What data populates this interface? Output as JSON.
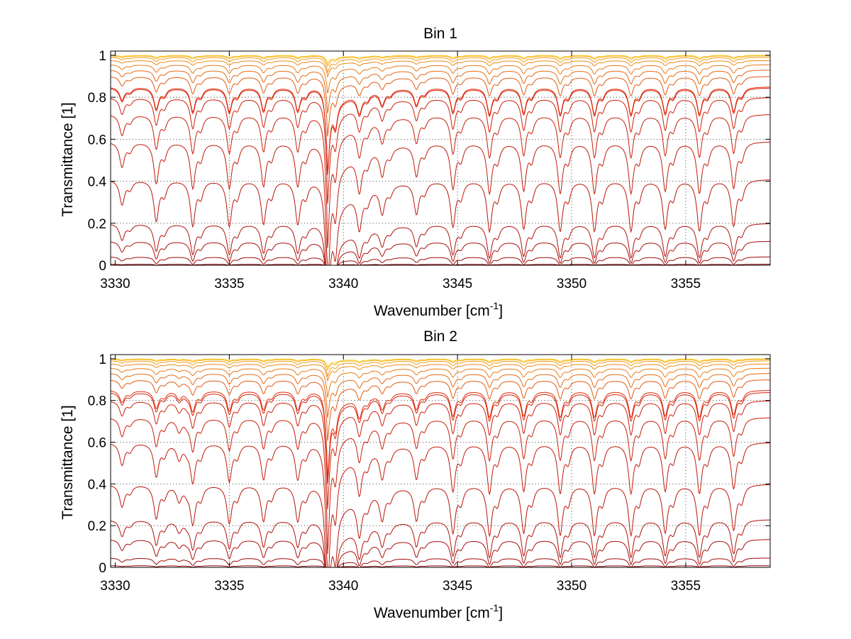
{
  "chart_data": [
    {
      "type": "line",
      "title": "Bin 1",
      "xlabel": "Wavenumber [cm",
      "xlabel_sup": "-1",
      "xlabel_end": "]",
      "ylabel": "Transmittance [1]",
      "xlim": [
        3329.8,
        3358.7
      ],
      "ylim": [
        0,
        1.02
      ],
      "xticks": [
        "3330",
        "3335",
        "3340",
        "3345",
        "3350",
        "3355"
      ],
      "yticks": [
        "0",
        "0.2",
        "0.4",
        "0.6",
        "0.8",
        "1"
      ],
      "grid": true,
      "legend": "none",
      "line_centers": [
        3330.3,
        3331.8,
        3333.4,
        3335.0,
        3336.5,
        3338.0,
        3339.3,
        3340.7,
        3341.7,
        3343.2,
        3344.8,
        3346.4,
        3347.9,
        3349.5,
        3351.0,
        3352.6,
        3354.1,
        3355.6,
        3357.1
      ],
      "line_strengths": [
        0.55,
        0.9,
        1.0,
        1.0,
        0.95,
        0.95,
        2.6,
        0.8,
        0.6,
        0.7,
        1.0,
        1.1,
        1.05,
        1.1,
        1.1,
        1.1,
        1.05,
        1.1,
        1.0
      ],
      "sharp_line": 3339.3,
      "series": [
        {
          "color": "#8b0000",
          "baseline": 0.0
        },
        {
          "color": "#950606",
          "baseline": 0.005
        },
        {
          "color": "#a00a0a",
          "baseline": 0.04
        },
        {
          "color": "#a80e0a",
          "baseline": 0.115
        },
        {
          "color": "#b0120a",
          "baseline": 0.2
        },
        {
          "color": "#b8160a",
          "baseline": 0.41
        },
        {
          "color": "#c01a0a",
          "baseline": 0.59
        },
        {
          "color": "#c81e0a",
          "baseline": 0.72
        },
        {
          "color": "#cc200a",
          "baseline": 0.8
        },
        {
          "color": "#d4240a",
          "baseline": 0.845
        },
        {
          "color": "#e02a0c",
          "baseline": 0.85
        },
        {
          "color": "#e05a10",
          "baseline": 0.9
        },
        {
          "color": "#e46a14",
          "baseline": 0.93
        },
        {
          "color": "#e87a16",
          "baseline": 0.955
        },
        {
          "color": "#ec8a18",
          "baseline": 0.975
        },
        {
          "color": "#f09c1a",
          "baseline": 0.99
        },
        {
          "color": "#f4b01c",
          "baseline": 0.997
        },
        {
          "color": "#f8c820",
          "baseline": 1.0
        }
      ]
    },
    {
      "type": "line",
      "title": "Bin 2",
      "xlabel": "Wavenumber [cm",
      "xlabel_sup": "-1",
      "xlabel_end": "]",
      "ylabel": "Transmittance [1]",
      "xlim": [
        3329.8,
        3358.7
      ],
      "ylim": [
        0,
        1.02
      ],
      "xticks": [
        "3330",
        "3335",
        "3340",
        "3345",
        "3350",
        "3355"
      ],
      "yticks": [
        "0",
        "0.2",
        "0.4",
        "0.6",
        "0.8",
        "1"
      ],
      "grid": true,
      "legend": "none",
      "line_centers": [
        3330.3,
        3331.8,
        3332.8,
        3333.4,
        3335.0,
        3336.5,
        3338.0,
        3339.3,
        3340.7,
        3341.7,
        3343.2,
        3344.8,
        3346.4,
        3347.9,
        3349.5,
        3351.0,
        3352.6,
        3354.1,
        3355.6,
        3357.1
      ],
      "line_strengths": [
        0.5,
        0.75,
        0.35,
        0.85,
        0.85,
        0.8,
        0.8,
        2.7,
        0.85,
        0.65,
        0.75,
        1.05,
        1.1,
        1.05,
        1.1,
        1.1,
        1.1,
        1.05,
        1.1,
        1.0
      ],
      "sharp_line": 3339.3,
      "series": [
        {
          "color": "#8b0000",
          "baseline": 0.0
        },
        {
          "color": "#950606",
          "baseline": 0.008
        },
        {
          "color": "#a00a0a",
          "baseline": 0.045
        },
        {
          "color": "#a80e0a",
          "baseline": 0.135
        },
        {
          "color": "#b0120a",
          "baseline": 0.23
        },
        {
          "color": "#b8160a",
          "baseline": 0.4
        },
        {
          "color": "#c01a0a",
          "baseline": 0.6
        },
        {
          "color": "#c81e0a",
          "baseline": 0.72
        },
        {
          "color": "#cc200a",
          "baseline": 0.8
        },
        {
          "color": "#d4240a",
          "baseline": 0.84
        },
        {
          "color": "#e02a0c",
          "baseline": 0.85
        },
        {
          "color": "#e05a10",
          "baseline": 0.9
        },
        {
          "color": "#e46a14",
          "baseline": 0.93
        },
        {
          "color": "#e87a16",
          "baseline": 0.955
        },
        {
          "color": "#ec8a18",
          "baseline": 0.975
        },
        {
          "color": "#f09c1a",
          "baseline": 0.99
        },
        {
          "color": "#f4b01c",
          "baseline": 0.997
        },
        {
          "color": "#f8c820",
          "baseline": 1.0
        }
      ]
    }
  ]
}
